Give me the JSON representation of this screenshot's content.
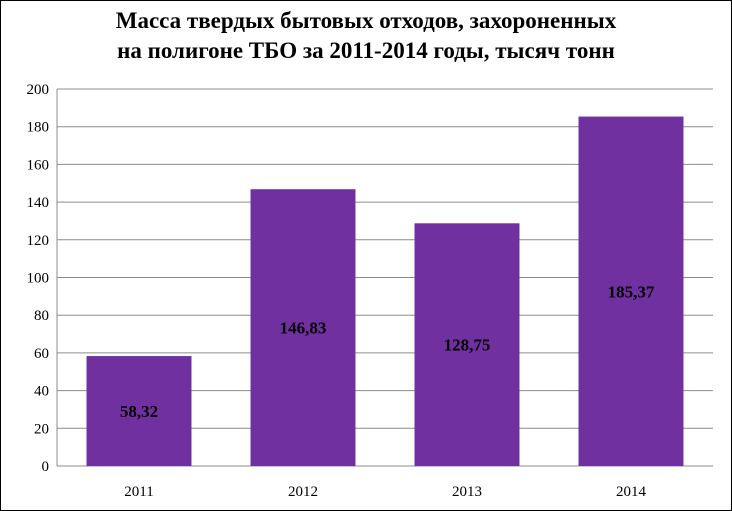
{
  "chart_data": {
    "type": "bar",
    "title_lines": [
      "Масса твердых бытовых отходов, захороненных",
      "на полигоне ТБО за 2011-2014 годы, тысяч тонн"
    ],
    "categories": [
      "2011",
      "2012",
      "2013",
      "2014"
    ],
    "values": [
      58.32,
      146.83,
      128.75,
      185.37
    ],
    "data_labels": [
      "58,32",
      "146,83",
      "128,75",
      "185,37"
    ],
    "yticks": [
      "0",
      "20",
      "40",
      "60",
      "80",
      "100",
      "120",
      "140",
      "160",
      "180",
      "200"
    ],
    "ylim": [
      0,
      200
    ],
    "bar_color": "#7030A0",
    "grid": true,
    "legend": "none"
  }
}
